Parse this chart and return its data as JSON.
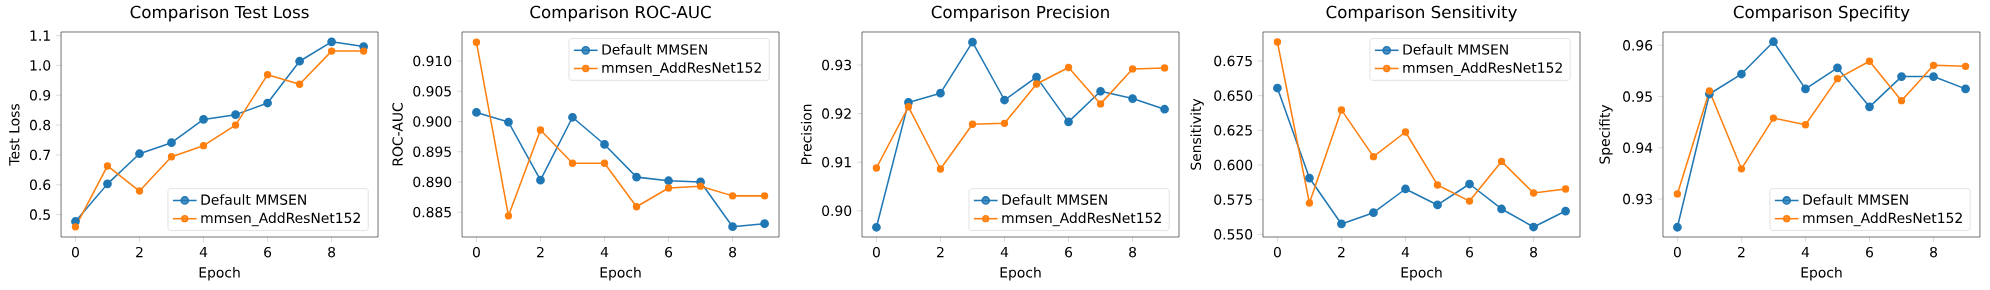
{
  "chart_data": [
    {
      "type": "line",
      "title": "Comparison Test Loss",
      "xlabel": "Epoch",
      "ylabel": "Test Loss",
      "x": [
        0,
        1,
        2,
        3,
        4,
        5,
        6,
        7,
        8,
        9
      ],
      "xlim": [
        -0.45,
        9.45
      ],
      "xticks": [
        0,
        2,
        4,
        6,
        8
      ],
      "ylim": [
        0.425,
        1.112
      ],
      "yticks": [
        {
          "value": 0.5,
          "label": "0.5"
        },
        {
          "value": 0.6,
          "label": "0.6"
        },
        {
          "value": 0.7,
          "label": "0.7"
        },
        {
          "value": 0.8,
          "label": "0.8"
        },
        {
          "value": 0.9,
          "label": "0.9"
        },
        {
          "value": 1.0,
          "label": "1.0"
        },
        {
          "value": 1.1,
          "label": "1.1"
        }
      ],
      "legend": "bottom right",
      "marker": "circle",
      "line_style": "solid",
      "series": [
        {
          "name": "Default MMSEN",
          "color": "#1f77b4",
          "values": [
            0.477,
            0.603,
            0.704,
            0.741,
            0.819,
            0.835,
            0.874,
            1.014,
            1.079,
            1.063
          ]
        },
        {
          "name": "mmsen_AddResNet152",
          "color": "#ff7f0e",
          "values": [
            0.459,
            0.663,
            0.579,
            0.694,
            0.731,
            0.8,
            0.969,
            0.937,
            1.048,
            1.048
          ]
        }
      ]
    },
    {
      "type": "line",
      "title": "Comparison ROC-AUC",
      "xlabel": "Epoch",
      "ylabel": "ROC-AUC",
      "x": [
        0,
        1,
        2,
        3,
        4,
        5,
        6,
        7,
        8,
        9
      ],
      "xlim": [
        -0.45,
        9.45
      ],
      "xticks": [
        0,
        2,
        4,
        6,
        8
      ],
      "ylim": [
        0.8809,
        0.9148
      ],
      "yticks": [
        {
          "value": 0.885,
          "label": "0.885"
        },
        {
          "value": 0.89,
          "label": "0.890"
        },
        {
          "value": 0.895,
          "label": "0.895"
        },
        {
          "value": 0.9,
          "label": "0.900"
        },
        {
          "value": 0.905,
          "label": "0.905"
        },
        {
          "value": 0.91,
          "label": "0.910"
        }
      ],
      "legend": "top right",
      "marker": "circle",
      "line_style": "solid",
      "series": [
        {
          "name": "Default MMSEN",
          "color": "#1f77b4",
          "values": [
            0.9015,
            0.8999,
            0.8903,
            0.9007,
            0.8962,
            0.8908,
            0.8902,
            0.89,
            0.8826,
            0.8831
          ]
        },
        {
          "name": "mmsen_AddResNet152",
          "color": "#ff7f0e",
          "values": [
            0.9131,
            0.8844,
            0.8986,
            0.8931,
            0.8931,
            0.8859,
            0.889,
            0.8893,
            0.8877,
            0.8877
          ]
        }
      ]
    },
    {
      "type": "line",
      "title": "Comparison Precision",
      "xlabel": "Epoch",
      "ylabel": "Precision",
      "x": [
        0,
        1,
        2,
        3,
        4,
        5,
        6,
        7,
        8,
        9
      ],
      "xlim": [
        -0.45,
        9.45
      ],
      "xticks": [
        0,
        2,
        4,
        6,
        8
      ],
      "ylim": [
        0.8946,
        0.9368
      ],
      "yticks": [
        {
          "value": 0.9,
          "label": "0.90"
        },
        {
          "value": 0.91,
          "label": "0.91"
        },
        {
          "value": 0.92,
          "label": "0.92"
        },
        {
          "value": 0.93,
          "label": "0.93"
        }
      ],
      "legend": "bottom right",
      "marker": "circle",
      "line_style": "solid",
      "series": [
        {
          "name": "Default MMSEN",
          "color": "#1f77b4",
          "values": [
            0.8966,
            0.9223,
            0.9242,
            0.9347,
            0.9228,
            0.9275,
            0.9183,
            0.9246,
            0.9231,
            0.9209
          ]
        },
        {
          "name": "mmsen_AddResNet152",
          "color": "#ff7f0e",
          "values": [
            0.9088,
            0.9214,
            0.9086,
            0.9178,
            0.918,
            0.9261,
            0.9295,
            0.922,
            0.9292,
            0.9294
          ]
        }
      ]
    },
    {
      "type": "line",
      "title": "Comparison Sensitivity",
      "xlabel": "Epoch",
      "ylabel": "Sensitivity",
      "x": [
        0,
        1,
        2,
        3,
        4,
        5,
        6,
        7,
        8,
        9
      ],
      "xlim": [
        -0.45,
        9.45
      ],
      "xticks": [
        0,
        2,
        4,
        6,
        8
      ],
      "ylim": [
        0.5481,
        0.6959
      ],
      "yticks": [
        {
          "value": 0.55,
          "label": "0.550"
        },
        {
          "value": 0.575,
          "label": "0.575"
        },
        {
          "value": 0.6,
          "label": "0.600"
        },
        {
          "value": 0.625,
          "label": "0.625"
        },
        {
          "value": 0.65,
          "label": "0.650"
        },
        {
          "value": 0.675,
          "label": "0.675"
        }
      ],
      "legend": "top right",
      "marker": "circle",
      "line_style": "solid",
      "series": [
        {
          "name": "Default MMSEN",
          "color": "#1f77b4",
          "values": [
            0.6555,
            0.5906,
            0.5575,
            0.5656,
            0.5827,
            0.5712,
            0.5863,
            0.5683,
            0.5553,
            0.5668
          ]
        },
        {
          "name": "mmsen_AddResNet152",
          "color": "#ff7f0e",
          "values": [
            0.6887,
            0.5726,
            0.6397,
            0.606,
            0.6238,
            0.5856,
            0.574,
            0.6026,
            0.5798,
            0.5827
          ]
        }
      ]
    },
    {
      "type": "line",
      "title": "Comparison Specifity",
      "xlabel": "Epoch",
      "ylabel": "Specifity",
      "x": [
        0,
        1,
        2,
        3,
        4,
        5,
        6,
        7,
        8,
        9
      ],
      "xlim": [
        -0.45,
        9.45
      ],
      "xticks": [
        0,
        2,
        4,
        6,
        8
      ],
      "ylim": [
        0.9226,
        0.9626
      ],
      "yticks": [
        {
          "value": 0.93,
          "label": "0.93"
        },
        {
          "value": 0.94,
          "label": "0.94"
        },
        {
          "value": 0.95,
          "label": "0.95"
        },
        {
          "value": 0.96,
          "label": "0.96"
        }
      ],
      "legend": "bottom right",
      "marker": "circle",
      "line_style": "solid",
      "series": [
        {
          "name": "Default MMSEN",
          "color": "#1f77b4",
          "values": [
            0.9245,
            0.9505,
            0.9544,
            0.9607,
            0.9515,
            0.9556,
            0.948,
            0.9539,
            0.9539,
            0.9515
          ]
        },
        {
          "name": "mmsen_AddResNet152",
          "color": "#ff7f0e",
          "values": [
            0.931,
            0.9511,
            0.9359,
            0.9458,
            0.9445,
            0.9535,
            0.9569,
            0.9492,
            0.9561,
            0.9559
          ]
        }
      ]
    }
  ]
}
